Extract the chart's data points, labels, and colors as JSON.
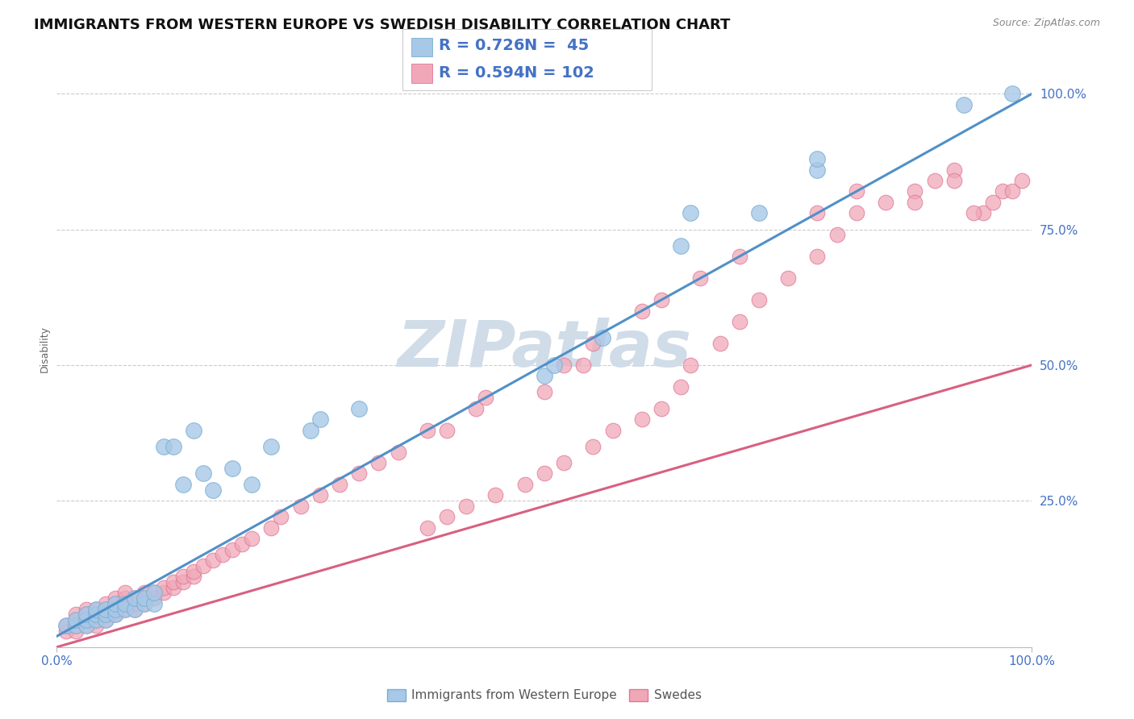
{
  "title": "IMMIGRANTS FROM WESTERN EUROPE VS SWEDISH DISABILITY CORRELATION CHART",
  "source_text": "Source: ZipAtlas.com",
  "ylabel": "Disability",
  "y_tick_positions": [
    0.25,
    0.5,
    0.75,
    1.0
  ],
  "xlim": [
    0.0,
    1.0
  ],
  "ylim": [
    -0.02,
    1.08
  ],
  "legend_r_blue": "R = 0.726",
  "legend_n_blue": "N =  45",
  "legend_r_pink": "R = 0.594",
  "legend_n_pink": "N = 102",
  "legend_label_blue": "Immigrants from Western Europe",
  "legend_label_pink": "Swedes",
  "blue_color": "#a8c8e8",
  "pink_color": "#f0a8b8",
  "blue_edge_color": "#7aaed0",
  "pink_edge_color": "#e07898",
  "blue_line_color": "#5090c8",
  "pink_line_color": "#d86080",
  "watermark": "ZIPatlas",
  "watermark_color": "#d0dce8",
  "title_fontsize": 13,
  "axis_label_fontsize": 9,
  "tick_fontsize": 11,
  "legend_fontsize": 14,
  "blue_line_x0": 0.0,
  "blue_line_y0": 0.0,
  "blue_line_x1": 1.0,
  "blue_line_y1": 1.0,
  "pink_line_x0": 0.0,
  "pink_line_y0": -0.02,
  "pink_line_x1": 1.0,
  "pink_line_y1": 0.5,
  "blue_x": [
    0.01,
    0.02,
    0.02,
    0.03,
    0.03,
    0.03,
    0.04,
    0.04,
    0.04,
    0.05,
    0.05,
    0.05,
    0.06,
    0.06,
    0.06,
    0.07,
    0.07,
    0.08,
    0.08,
    0.09,
    0.09,
    0.1,
    0.1,
    0.11,
    0.12,
    0.13,
    0.14,
    0.15,
    0.16,
    0.18,
    0.2,
    0.22,
    0.26,
    0.27,
    0.31,
    0.5,
    0.51,
    0.56,
    0.64,
    0.65,
    0.72,
    0.78,
    0.78,
    0.93,
    0.98
  ],
  "blue_y": [
    0.02,
    0.02,
    0.03,
    0.02,
    0.03,
    0.04,
    0.03,
    0.04,
    0.05,
    0.03,
    0.04,
    0.05,
    0.04,
    0.05,
    0.06,
    0.05,
    0.06,
    0.05,
    0.07,
    0.06,
    0.07,
    0.06,
    0.08,
    0.35,
    0.35,
    0.28,
    0.38,
    0.3,
    0.27,
    0.31,
    0.28,
    0.35,
    0.38,
    0.4,
    0.42,
    0.48,
    0.5,
    0.55,
    0.72,
    0.78,
    0.78,
    0.86,
    0.88,
    0.98,
    1.0
  ],
  "pink_x": [
    0.01,
    0.01,
    0.02,
    0.02,
    0.02,
    0.02,
    0.03,
    0.03,
    0.03,
    0.03,
    0.04,
    0.04,
    0.04,
    0.04,
    0.05,
    0.05,
    0.05,
    0.05,
    0.06,
    0.06,
    0.06,
    0.06,
    0.07,
    0.07,
    0.07,
    0.07,
    0.08,
    0.08,
    0.08,
    0.09,
    0.09,
    0.09,
    0.1,
    0.1,
    0.11,
    0.11,
    0.12,
    0.12,
    0.13,
    0.13,
    0.14,
    0.14,
    0.15,
    0.16,
    0.17,
    0.18,
    0.19,
    0.2,
    0.22,
    0.23,
    0.25,
    0.27,
    0.29,
    0.31,
    0.33,
    0.35,
    0.38,
    0.38,
    0.4,
    0.42,
    0.43,
    0.45,
    0.48,
    0.5,
    0.52,
    0.55,
    0.57,
    0.6,
    0.62,
    0.64,
    0.65,
    0.68,
    0.7,
    0.72,
    0.75,
    0.78,
    0.8,
    0.82,
    0.85,
    0.88,
    0.9,
    0.92,
    0.95,
    0.97,
    0.4,
    0.44,
    0.52,
    0.55,
    0.6,
    0.62,
    0.66,
    0.7,
    0.78,
    0.82,
    0.88,
    0.92,
    0.94,
    0.96,
    0.98,
    0.99,
    0.5,
    0.54
  ],
  "pink_y": [
    0.01,
    0.02,
    0.01,
    0.02,
    0.03,
    0.04,
    0.02,
    0.03,
    0.04,
    0.05,
    0.02,
    0.03,
    0.04,
    0.05,
    0.03,
    0.04,
    0.05,
    0.06,
    0.04,
    0.05,
    0.06,
    0.07,
    0.05,
    0.06,
    0.07,
    0.08,
    0.05,
    0.06,
    0.07,
    0.06,
    0.07,
    0.08,
    0.07,
    0.08,
    0.08,
    0.09,
    0.09,
    0.1,
    0.1,
    0.11,
    0.11,
    0.12,
    0.13,
    0.14,
    0.15,
    0.16,
    0.17,
    0.18,
    0.2,
    0.22,
    0.24,
    0.26,
    0.28,
    0.3,
    0.32,
    0.34,
    0.2,
    0.38,
    0.22,
    0.24,
    0.42,
    0.26,
    0.28,
    0.3,
    0.32,
    0.35,
    0.38,
    0.4,
    0.42,
    0.46,
    0.5,
    0.54,
    0.58,
    0.62,
    0.66,
    0.7,
    0.74,
    0.78,
    0.8,
    0.82,
    0.84,
    0.86,
    0.78,
    0.82,
    0.38,
    0.44,
    0.5,
    0.54,
    0.6,
    0.62,
    0.66,
    0.7,
    0.78,
    0.82,
    0.8,
    0.84,
    0.78,
    0.8,
    0.82,
    0.84,
    0.45,
    0.5
  ]
}
